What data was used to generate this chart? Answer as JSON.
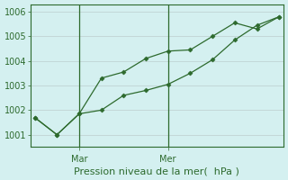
{
  "line1_x": [
    0,
    1,
    2,
    3,
    4,
    5,
    6,
    7,
    8,
    9,
    10,
    11
  ],
  "line1_y": [
    1001.7,
    1001.0,
    1001.85,
    1003.3,
    1003.55,
    1004.1,
    1004.4,
    1004.45,
    1005.0,
    1005.55,
    1005.3,
    1005.8
  ],
  "line2_x": [
    0,
    1,
    2,
    3,
    4,
    5,
    6,
    7,
    8,
    9,
    10,
    11
  ],
  "line2_y": [
    1001.7,
    1001.0,
    1001.85,
    1002.0,
    1002.6,
    1002.8,
    1003.05,
    1003.5,
    1004.05,
    1004.85,
    1005.45,
    1005.8
  ],
  "line_color": "#2d6a2d",
  "marker": "D",
  "marker_size": 2.5,
  "ylim": [
    1000.5,
    1006.3
  ],
  "yticks": [
    1001,
    1002,
    1003,
    1004,
    1005,
    1006
  ],
  "vline_x1": 2,
  "vline_x2": 6,
  "xtick_label1": "Mar",
  "xtick_label2": "Mer",
  "bg_color": "#d4f0f0",
  "grid_color": "#c0d4d4",
  "line_color_axis": "#2d6a2d",
  "xlabel": "Pression niveau de la mer(  hPa )",
  "xlabel_fontsize": 8,
  "tick_fontsize": 7,
  "fig_width": 3.2,
  "fig_height": 2.0,
  "dpi": 100,
  "xlim": [
    -0.2,
    11.2
  ]
}
